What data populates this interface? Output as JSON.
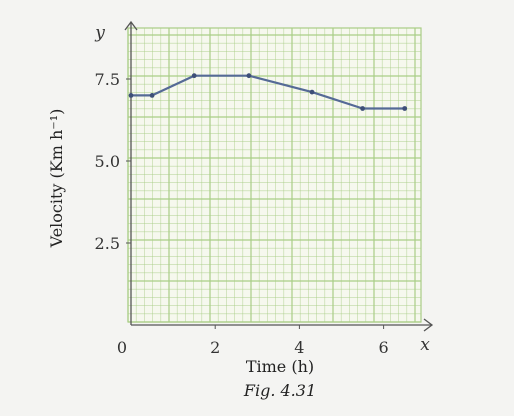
{
  "chart_data": {
    "type": "line",
    "title": "",
    "xlabel": "Time (h)",
    "ylabel": "Velocity (Km h⁻¹)",
    "x_axis_letter": "x",
    "y_axis_letter": "y",
    "origin_label": "0",
    "caption": "Fig. 4.31",
    "x_ticks": [
      2,
      4,
      6
    ],
    "y_ticks": [
      2.5,
      5.0,
      7.5
    ],
    "x_tick_labels": [
      "2",
      "4",
      "6"
    ],
    "y_tick_labels": [
      "2.5",
      "5.0",
      "7.5"
    ],
    "xlim": [
      0,
      7
    ],
    "ylim": [
      0,
      9
    ],
    "grid": true,
    "colors": {
      "grid": "#a9cd86",
      "line": "#556a96",
      "plot_bg": "#f6f8ee"
    },
    "series": [
      {
        "x": [
          0,
          0.5,
          1.5,
          2.8,
          4.3,
          5.5,
          6.5
        ],
        "y": [
          7.0,
          7.0,
          7.6,
          7.6,
          7.1,
          6.6,
          6.6
        ]
      }
    ]
  }
}
